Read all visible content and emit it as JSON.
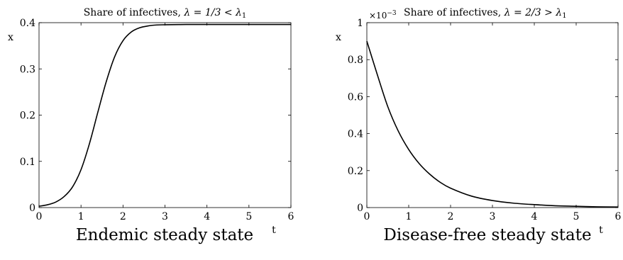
{
  "chart_data": [
    {
      "type": "line",
      "title_prefix": "Share of infectives, ",
      "title_math": "λ = 1/3 < λ",
      "title_sub": "1",
      "xlabel": "t",
      "ylabel": "x",
      "xlim": [
        0,
        6
      ],
      "ylim": [
        0,
        0.4
      ],
      "xticks": [
        "0",
        "1",
        "2",
        "3",
        "4",
        "5",
        "6"
      ],
      "yticks": [
        "0",
        "0.1",
        "0.2",
        "0.3",
        "0.4"
      ],
      "y_exponent_label": "",
      "caption": "Endemic steady state",
      "series": [
        {
          "x": [
            0,
            0.2,
            0.4,
            0.6,
            0.8,
            1.0,
            1.2,
            1.4,
            1.6,
            1.8,
            2.0,
            2.2,
            2.4,
            2.6,
            2.8,
            3.0,
            3.5,
            4.0,
            5.0,
            6.0
          ],
          "y": [
            0.003,
            0.006,
            0.012,
            0.024,
            0.045,
            0.082,
            0.138,
            0.206,
            0.272,
            0.326,
            0.361,
            0.38,
            0.389,
            0.393,
            0.395,
            0.3955,
            0.396,
            0.396,
            0.396,
            0.396
          ]
        }
      ]
    },
    {
      "type": "line",
      "title_prefix": "Share of infectives, ",
      "title_math": "λ = 2/3 > λ",
      "title_sub": "1",
      "xlabel": "t",
      "ylabel": "x",
      "xlim": [
        0,
        6
      ],
      "ylim": [
        0,
        1
      ],
      "xticks": [
        "0",
        "1",
        "2",
        "3",
        "4",
        "5",
        "6"
      ],
      "yticks": [
        "0",
        "0.2",
        "0.4",
        "0.6",
        "0.8",
        "1"
      ],
      "y_exponent_label": "×10",
      "y_exponent": "−3",
      "caption": "Disease-free steady state",
      "series": [
        {
          "x": [
            0,
            0.25,
            0.5,
            0.75,
            1.0,
            1.25,
            1.5,
            1.75,
            2.0,
            2.5,
            3.0,
            3.5,
            4.0,
            4.5,
            5.0,
            5.5,
            6.0
          ],
          "y": [
            0.9,
            0.719,
            0.546,
            0.414,
            0.314,
            0.238,
            0.181,
            0.137,
            0.105,
            0.062,
            0.038,
            0.024,
            0.016,
            0.01,
            0.007,
            0.004,
            0.003
          ]
        }
      ]
    }
  ]
}
